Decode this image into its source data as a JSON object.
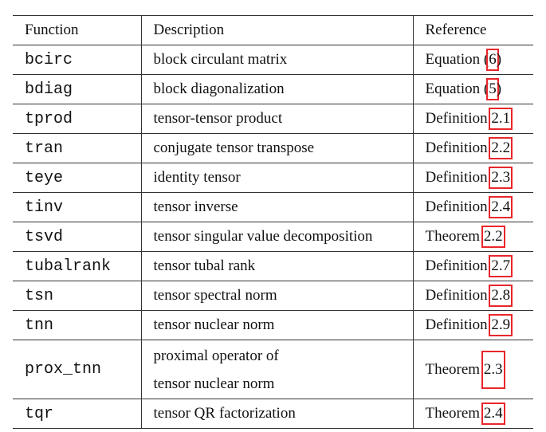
{
  "table": {
    "headers": [
      "Function",
      "Description",
      "Reference"
    ],
    "rows": [
      {
        "fn": "bcirc",
        "desc": "block circulant matrix",
        "ref_pre": "Equation (",
        "ref_num": "6",
        "ref_post": ")"
      },
      {
        "fn": "bdiag",
        "desc": "block diagonalization",
        "ref_pre": "Equation (",
        "ref_num": "5",
        "ref_post": ")"
      },
      {
        "fn": "tprod",
        "desc": "tensor-tensor product",
        "ref_pre": "Definition ",
        "ref_num": "2.1",
        "ref_post": ""
      },
      {
        "fn": "tran",
        "desc": "conjugate tensor transpose",
        "ref_pre": "Definition ",
        "ref_num": "2.2",
        "ref_post": ""
      },
      {
        "fn": "teye",
        "desc": "identity tensor",
        "ref_pre": "Definition ",
        "ref_num": "2.3",
        "ref_post": ""
      },
      {
        "fn": "tinv",
        "desc": "tensor inverse",
        "ref_pre": "Definition ",
        "ref_num": "2.4",
        "ref_post": ""
      },
      {
        "fn": "tsvd",
        "desc": "tensor singular value decomposition",
        "ref_pre": "Theorem ",
        "ref_num": "2.2",
        "ref_post": ""
      },
      {
        "fn": "tubalrank",
        "desc": "tensor tubal rank",
        "ref_pre": "Definition ",
        "ref_num": "2.7",
        "ref_post": ""
      },
      {
        "fn": "tsn",
        "desc": "tensor spectral norm",
        "ref_pre": "Definition ",
        "ref_num": "2.8",
        "ref_post": ""
      },
      {
        "fn": "tnn",
        "desc": "tensor nuclear norm",
        "ref_pre": "Definition ",
        "ref_num": "2.9",
        "ref_post": ""
      },
      {
        "fn": "prox_tnn",
        "desc_line1": "proximal operator of",
        "desc_line2": "tensor nuclear norm",
        "ref_pre": "Theorem ",
        "ref_num": "2.3",
        "ref_post": ""
      },
      {
        "fn": "tqr",
        "desc": "tensor QR factorization",
        "ref_pre": "Theorem ",
        "ref_num": "2.4",
        "ref_post": ""
      }
    ]
  },
  "colors": {
    "highlight_box": "#e8262b",
    "rule": "#333333",
    "text": "#111111"
  }
}
